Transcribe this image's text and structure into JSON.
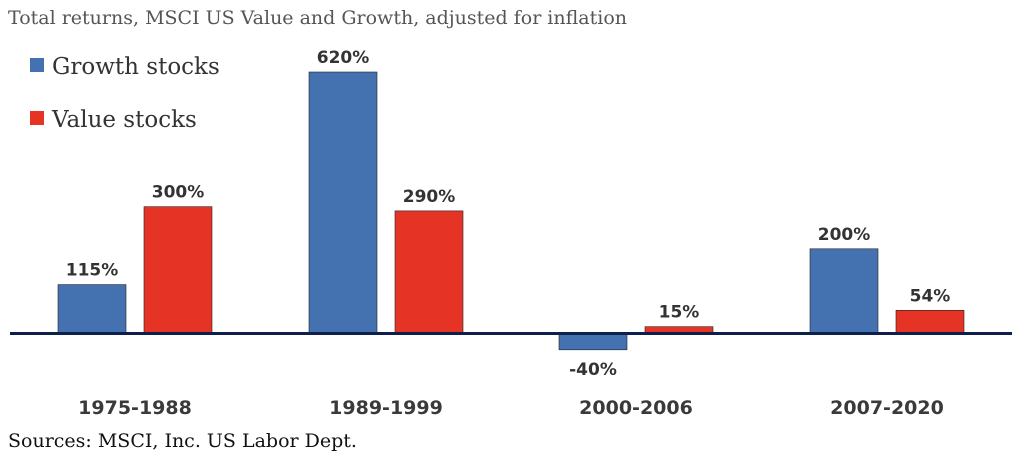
{
  "chart_data": {
    "type": "bar",
    "title": "Total returns, MSCI US Value and Growth, adjusted for inflation",
    "categories": [
      "1975-1988",
      "1989-1999",
      "2000-2006",
      "2007-2020"
    ],
    "series": [
      {
        "name": "Growth stocks",
        "values": [
          115,
          620,
          -40,
          200
        ],
        "labels": [
          "115%",
          "620%",
          "-40%",
          "200%"
        ],
        "color": "#4472b0"
      },
      {
        "name": "Value stocks",
        "values": [
          300,
          290,
          15,
          54
        ],
        "labels": [
          "300%",
          "290%",
          "15%",
          "54%"
        ],
        "color": "#e53326"
      }
    ],
    "unit": "%",
    "ylim": [
      -40,
      620
    ],
    "grid": false,
    "legend": "top-left",
    "baseline_color": "#0d1f4a",
    "source": "Sources: MSCI, Inc. US Labor Dept."
  }
}
